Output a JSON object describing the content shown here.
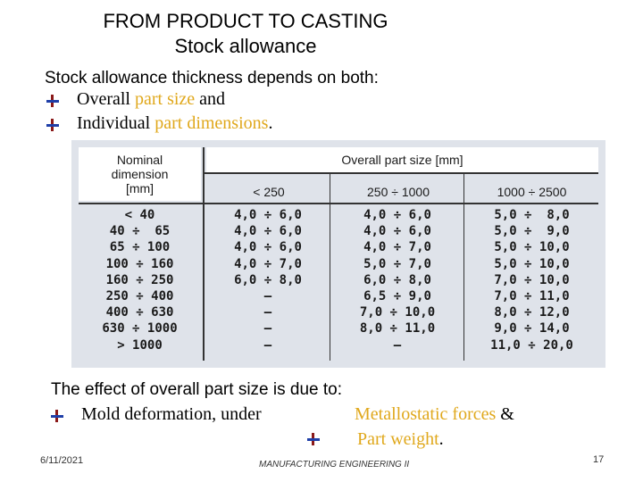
{
  "title": {
    "line1": "FROM PRODUCT TO CASTING",
    "line2": "Stock allowance"
  },
  "heading1": "Stock allowance thickness depends on both:",
  "bullets1": [
    {
      "plain": "Overall ",
      "highlight": "part size",
      "rest": " and"
    },
    {
      "plain": "Individual ",
      "highlight": "part dimensions",
      "rest": "."
    }
  ],
  "table": {
    "nominal_header": [
      "Nominal",
      "dimension",
      "[mm]"
    ],
    "overall_header": "Overall part size [mm]",
    "columns": [
      "< 250",
      "250 ÷ 1000",
      "1000 ÷ 2500"
    ],
    "rows": [
      {
        "dim": "< 40",
        "c1": "4,0 ÷ 6,0",
        "c2": "4,0 ÷ 6,0",
        "c3": "5,0 ÷  8,0"
      },
      {
        "dim": "40 ÷  65",
        "c1": "4,0 ÷ 6,0",
        "c2": "4,0 ÷ 6,0",
        "c3": "5,0 ÷  9,0"
      },
      {
        "dim": "65 ÷ 100",
        "c1": "4,0 ÷ 6,0",
        "c2": "4,0 ÷ 7,0",
        "c3": "5,0 ÷ 10,0"
      },
      {
        "dim": "100 ÷ 160",
        "c1": "4,0 ÷ 7,0",
        "c2": "5,0 ÷ 7,0",
        "c3": "5,0 ÷ 10,0"
      },
      {
        "dim": "160 ÷ 250",
        "c1": "6,0 ÷ 8,0",
        "c2": "6,0 ÷ 8,0",
        "c3": "7,0 ÷ 10,0"
      },
      {
        "dim": "250 ÷ 400",
        "c1": "–",
        "c2": "6,5 ÷ 9,0",
        "c3": "7,0 ÷ 11,0"
      },
      {
        "dim": "400 ÷ 630",
        "c1": "–",
        "c2": "7,0 ÷ 10,0",
        "c3": "8,0 ÷ 12,0"
      },
      {
        "dim": "630 ÷ 1000",
        "c1": "–",
        "c2": "8,0 ÷ 11,0",
        "c3": "9,0 ÷ 14,0"
      },
      {
        "dim": "> 1000",
        "c1": "–",
        "c2": "–",
        "c3": "11,0 ÷ 20,0"
      }
    ]
  },
  "heading2": "The effect of overall part size is due to:",
  "bullets2": [
    {
      "plain": "Mold deformation, under",
      "highlight": "Metallostatic forces",
      "rest": " &"
    },
    {
      "plain": "",
      "highlight": "Part weight",
      "rest": "."
    }
  ],
  "footer": {
    "date": "6/11/2021",
    "course": "MANUFACTURING ENGINEERING II",
    "page": "17"
  },
  "colors": {
    "highlight": "#e0a81c",
    "bullet_vertical": "#8b1a1a",
    "bullet_horizontal": "#1f3fa8"
  }
}
